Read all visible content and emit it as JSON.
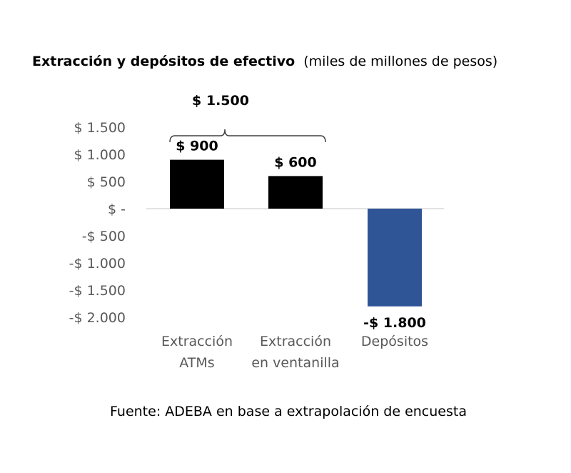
{
  "chart_data": {
    "type": "bar",
    "title": "Extracción y depósitos de efectivo",
    "subtitle": "(miles de millones de pesos)",
    "categories": [
      [
        "Extracción",
        "ATMs"
      ],
      [
        "Extracción",
        "en ventanilla"
      ],
      [
        "Depósitos"
      ]
    ],
    "values": [
      900,
      600,
      -1800
    ],
    "data_labels": [
      "$ 900",
      "$ 600",
      "-$ 1.800"
    ],
    "bar_colors": [
      "#000000",
      "#000000",
      "#2f5597"
    ],
    "yticks": [
      1500,
      1000,
      500,
      0,
      -500,
      -1000,
      -1500,
      -2000
    ],
    "ytick_labels": [
      "$ 1.500",
      "$ 1.000",
      "$ 500",
      "$ -",
      "-$ 500",
      "-$ 1.000",
      "-$ 1.500",
      "-$ 2.000"
    ],
    "ylim": [
      -2000,
      1500
    ],
    "annotation": {
      "label": "$ 1.500",
      "spans_categories": [
        0,
        1
      ]
    },
    "grid": false,
    "source": "Fuente: ADEBA en base a extrapolación de encuesta"
  }
}
